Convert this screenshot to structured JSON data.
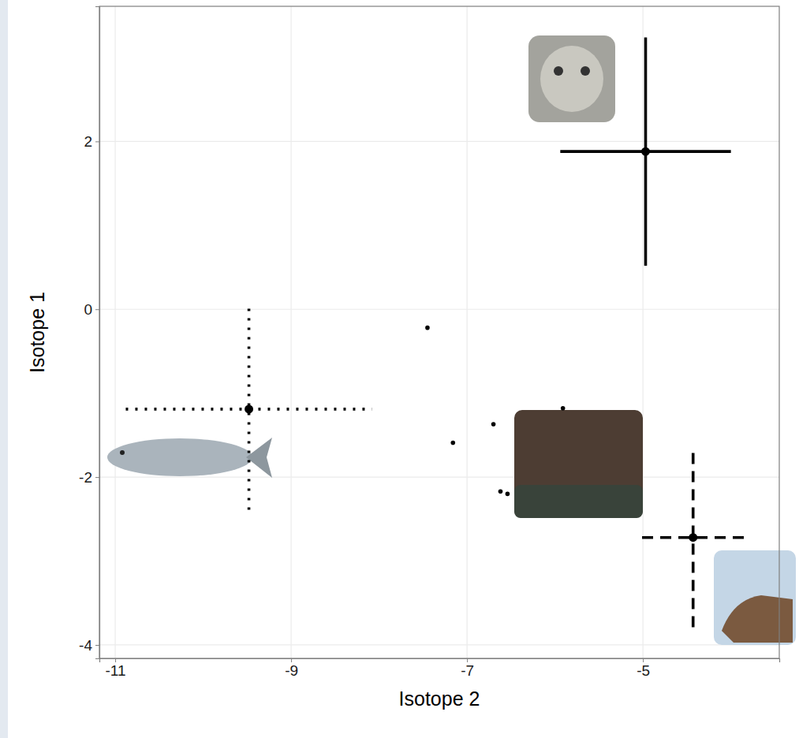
{
  "chart_data": {
    "type": "scatter",
    "x_label": "Isotope 2",
    "y_label": "Isotope 1",
    "xlim": [
      -11.18,
      -3.45
    ],
    "ylim": [
      -4.16,
      3.61
    ],
    "xticks": [
      -11,
      -9,
      -7,
      -5
    ],
    "yticks": [
      -4,
      -2,
      0,
      2
    ],
    "grid": true,
    "series": [
      {
        "type": "errorbar",
        "line_style": "solid",
        "color": "#000000",
        "x": [
          -4.97
        ],
        "values": [
          1.88
        ],
        "x_error": [
          0.97
        ],
        "y_error": [
          1.36
        ]
      },
      {
        "type": "errorbar",
        "line_style": "dotted",
        "color": "#000000",
        "x": [
          -9.48
        ],
        "values": [
          -1.19
        ],
        "x_error": [
          1.4
        ],
        "y_error": [
          1.2
        ]
      },
      {
        "type": "errorbar",
        "line_style": "dashed",
        "color": "#000000",
        "x": [
          -4.43
        ],
        "values": [
          -2.72
        ],
        "x_error": [
          0.58
        ],
        "y_error": [
          1.07
        ]
      },
      {
        "type": "scatter",
        "color": "#000000",
        "x": [
          -7.45,
          -7.16,
          -6.7,
          -5.91,
          -6.62,
          -6.54
        ],
        "values": [
          -0.22,
          -1.59,
          -1.37,
          -1.18,
          -2.17,
          -2.2
        ]
      }
    ]
  }
}
